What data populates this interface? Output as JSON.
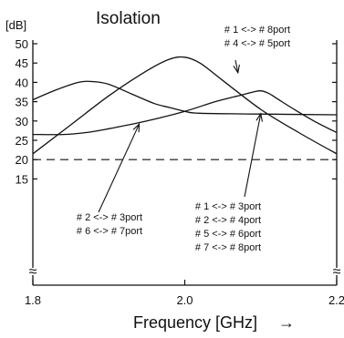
{
  "chart_data": {
    "type": "line",
    "title": "Isolation",
    "ylabel": "[dB]",
    "xlabel": "Frequency [GHz]",
    "xlabel_arrow": "→",
    "xlim": [
      1.8,
      2.2
    ],
    "ylim": [
      15,
      50
    ],
    "xticks": [
      1.8,
      2.0,
      2.2
    ],
    "xtick_labels": [
      "1.8",
      "2.0",
      "2.2"
    ],
    "yticks": [
      15,
      20,
      25,
      30,
      35,
      40,
      45,
      50
    ],
    "ytick_labels": [
      "15",
      "20",
      "25",
      "30",
      "35",
      "40",
      "45",
      "50"
    ],
    "axis_break_symbol": "≈",
    "grid": false,
    "line_color": "#111111",
    "series": [
      {
        "name": "# 1 ↔ # 8port / # 4 ↔ # 5port",
        "x": [
          1.8,
          1.85,
          1.9,
          1.95,
          1.98,
          2.0,
          2.02,
          2.05,
          2.1,
          2.15,
          2.2
        ],
        "y": [
          21.5,
          29.0,
          36.5,
          43.0,
          46.0,
          46.5,
          45.0,
          40.5,
          33.0,
          27.0,
          21.5
        ]
      },
      {
        "name": "# 2 ↔ # 3port / # 6 ↔ # 7port",
        "x": [
          1.8,
          1.84,
          1.87,
          1.9,
          1.95,
          2.0,
          2.04,
          2.07,
          2.09,
          2.1,
          2.11,
          2.12,
          2.14,
          2.17,
          2.2
        ],
        "y": [
          26.5,
          26.5,
          27.0,
          28.0,
          30.0,
          32.5,
          35.0,
          36.5,
          37.5,
          37.8,
          37.2,
          36.0,
          33.5,
          30.0,
          27.0
        ]
      },
      {
        "name": "# 1 ↔ # 3port / # 2 ↔ # 4port / # 5 ↔ # 6port / # 7 ↔ # 8port",
        "x": [
          1.8,
          1.83,
          1.86,
          1.88,
          1.9,
          1.93,
          1.96,
          1.98,
          2.0,
          2.02,
          2.1,
          2.2
        ],
        "y": [
          35.5,
          38.0,
          40.0,
          40.2,
          39.5,
          37.0,
          34.5,
          33.5,
          32.5,
          32.0,
          31.8,
          31.6
        ]
      }
    ],
    "reference_line": {
      "y": 20,
      "style": "dashed"
    },
    "annotations": [
      {
        "lines": [
          "# 1 <-> # 8port",
          "# 4 <-> # 5port"
        ],
        "points_to": [
          2.07,
          42.5
        ]
      },
      {
        "lines": [
          "# 2 <-> # 3port",
          "# 6 <-> # 7port"
        ],
        "points_to": [
          1.94,
          29.2
        ]
      },
      {
        "lines": [
          "# 1 <-> # 3port",
          "# 2 <-> # 4port",
          "# 5 <-> # 6port",
          "# 7 <-> # 8port"
        ],
        "points_to": [
          2.1,
          31.9
        ]
      }
    ]
  }
}
